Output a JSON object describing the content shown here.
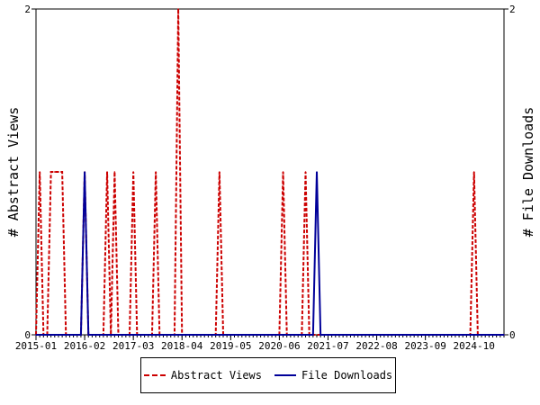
{
  "chart_data": {
    "type": "line",
    "ylabel_left": "# Abstract Views",
    "ylabel_right": "# File Downloads",
    "x_range": [
      "2015-01",
      "2025-06"
    ],
    "x_tick_labels": [
      "2015-01",
      "2016-02",
      "2017-03",
      "2018-04",
      "2019-05",
      "2020-06",
      "2021-07",
      "2022-08",
      "2023-09",
      "2024-10"
    ],
    "y_left_range": [
      0,
      2
    ],
    "y_right_range": [
      0,
      2
    ],
    "y_left_ticks": [
      "0",
      "2"
    ],
    "y_right_ticks": [
      "0",
      "2"
    ],
    "grid": false,
    "legend_position": "bottom",
    "series": [
      {
        "name": "Abstract Views",
        "color": "#cc0000",
        "style": "dashed",
        "points": [
          [
            "2015-01",
            0
          ],
          [
            "2015-02",
            1
          ],
          [
            "2015-03",
            0
          ],
          [
            "2015-04",
            0
          ],
          [
            "2015-05",
            1
          ],
          [
            "2015-06",
            1
          ],
          [
            "2015-07",
            1
          ],
          [
            "2015-08",
            1
          ],
          [
            "2015-09",
            0
          ],
          [
            "2016-01",
            0
          ],
          [
            "2016-02",
            1
          ],
          [
            "2016-03",
            0
          ],
          [
            "2016-07",
            0
          ],
          [
            "2016-08",
            1
          ],
          [
            "2016-09",
            0
          ],
          [
            "2016-10",
            1
          ],
          [
            "2016-11",
            0
          ],
          [
            "2017-02",
            0
          ],
          [
            "2017-03",
            1
          ],
          [
            "2017-04",
            0
          ],
          [
            "2017-08",
            0
          ],
          [
            "2017-09",
            1
          ],
          [
            "2017-10",
            0
          ],
          [
            "2018-02",
            0
          ],
          [
            "2018-03",
            2
          ],
          [
            "2018-04",
            0
          ],
          [
            "2019-01",
            0
          ],
          [
            "2019-02",
            1
          ],
          [
            "2019-03",
            0
          ],
          [
            "2020-06",
            0
          ],
          [
            "2020-07",
            1
          ],
          [
            "2020-08",
            0
          ],
          [
            "2020-12",
            0
          ],
          [
            "2021-01",
            1
          ],
          [
            "2021-02",
            0
          ],
          [
            "2024-09",
            0
          ],
          [
            "2024-10",
            1
          ],
          [
            "2024-11",
            0
          ],
          [
            "2025-06",
            0
          ]
        ]
      },
      {
        "name": "File Downloads",
        "color": "#000099",
        "style": "solid",
        "points": [
          [
            "2015-01",
            0
          ],
          [
            "2016-01",
            0
          ],
          [
            "2016-02",
            1
          ],
          [
            "2016-03",
            0
          ],
          [
            "2021-03",
            0
          ],
          [
            "2021-04",
            1
          ],
          [
            "2021-05",
            0
          ],
          [
            "2025-06",
            0
          ]
        ]
      }
    ]
  }
}
